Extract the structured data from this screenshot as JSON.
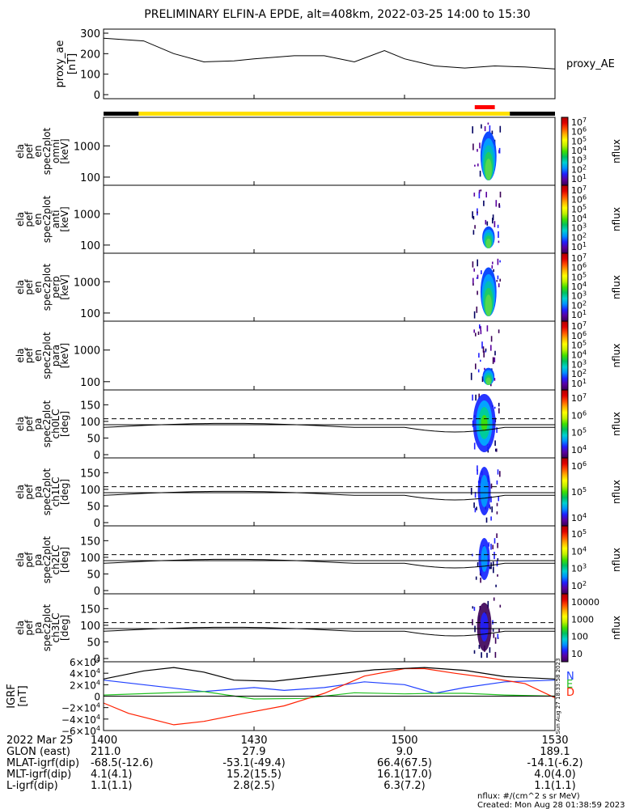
{
  "title": "PRELIMINARY ELFIN-A EPDE, alt=408km, 2022-03-25 14:00 to 15:30",
  "proxy_ae": {
    "ylabel": [
      "proxy_ae",
      "[nT]"
    ],
    "yticks": [
      "300",
      "200",
      "100",
      "0"
    ],
    "legend": "proxy_AE"
  },
  "energy_panels": [
    {
      "ylabel": [
        "ela",
        "pef",
        "en",
        "spec2plot",
        "omni",
        "[keV]"
      ],
      "yticks": [
        "1000",
        "100"
      ],
      "cbar_ticks": [
        "10^7",
        "10^6",
        "10^5",
        "10^4",
        "10^3",
        "10^2",
        "10^1"
      ],
      "cbar_label": "nflux"
    },
    {
      "ylabel": [
        "ela",
        "pef",
        "en",
        "spec2plot",
        "anti",
        "[keV]"
      ],
      "yticks": [
        "1000",
        "100"
      ],
      "cbar_ticks": [
        "10^7",
        "10^6",
        "10^5",
        "10^4",
        "10^3",
        "10^2",
        "10^1"
      ],
      "cbar_label": "nflux"
    },
    {
      "ylabel": [
        "ela",
        "pef",
        "en",
        "spec2plot",
        "perp",
        "[keV]"
      ],
      "yticks": [
        "1000",
        "100"
      ],
      "cbar_ticks": [
        "10^7",
        "10^6",
        "10^5",
        "10^4",
        "10^3",
        "10^2",
        "10^1"
      ],
      "cbar_label": "nflux"
    },
    {
      "ylabel": [
        "ela",
        "pef",
        "en",
        "spec2plot",
        "para",
        "[keV]"
      ],
      "yticks": [
        "1000",
        "100"
      ],
      "cbar_ticks": [
        "10^7",
        "10^6",
        "10^5",
        "10^4",
        "10^3",
        "10^2",
        "10^1"
      ],
      "cbar_label": "nflux"
    }
  ],
  "pa_panels": [
    {
      "ylabel": [
        "ela",
        "pef",
        "pa",
        "spec2plot",
        "ch0LC",
        "[deg]"
      ],
      "yticks": [
        "150",
        "100",
        "50",
        "0"
      ],
      "cbar_ticks": [
        "10^7",
        "10^6",
        "10^5",
        "10^4"
      ],
      "cbar_label": "nflux"
    },
    {
      "ylabel": [
        "ela",
        "pef",
        "pa",
        "spec2plot",
        "ch1LC",
        "[deg]"
      ],
      "yticks": [
        "150",
        "100",
        "50",
        "0"
      ],
      "cbar_ticks": [
        "10^6",
        "10^5",
        "10^4"
      ],
      "cbar_label": "nflux"
    },
    {
      "ylabel": [
        "ela",
        "pef",
        "pa",
        "spec2plot",
        "ch2LC",
        "[deg]"
      ],
      "yticks": [
        "150",
        "100",
        "50",
        "0"
      ],
      "cbar_ticks": [
        "10^5",
        "10^4",
        "10^3",
        "10^2"
      ],
      "cbar_label": "nflux"
    },
    {
      "ylabel": [
        "ela",
        "pef",
        "pa",
        "spec2plot",
        "ch3LC",
        "[deg]"
      ],
      "yticks": [
        "150",
        "100",
        "50",
        "0"
      ],
      "cbar_ticks": [
        "10000",
        "1000",
        "100",
        "10"
      ],
      "cbar_label": "nflux"
    }
  ],
  "igrf": {
    "ylabel": [
      "IGRF",
      "[nT]"
    ],
    "yticks": [
      "6×10^4",
      "4×10^4",
      "2×10^4",
      "0",
      "−2×10^4",
      "−4×10^4",
      "−6×10^4"
    ],
    "legend": [
      {
        "label": "N",
        "color": "#2040ff"
      },
      {
        "label": "E",
        "color": "#20c020"
      },
      {
        "label": "D",
        "color": "#ff2000"
      }
    ],
    "side_stamp": "Sun Aug 27 18:33:58 2023"
  },
  "ephemeris": {
    "rows": [
      {
        "label": "2022 Mar 25",
        "values": [
          "1400",
          "1430",
          "1500",
          "1530"
        ]
      },
      {
        "label": "GLON (east)",
        "values": [
          "211.0",
          "27.9",
          "9.0",
          "189.1"
        ]
      },
      {
        "label": "MLAT-igrf(dip)",
        "values": [
          "-68.5(-12.6)",
          "-53.1(-49.4)",
          "66.4(67.5)",
          "-14.1(-6.2)"
        ]
      },
      {
        "label": "MLT-igrf(dip)",
        "values": [
          "4.1(4.1)",
          "15.2(15.5)",
          "16.1(17.0)",
          "4.0(4.0)"
        ]
      },
      {
        "label": "L-igrf(dip)",
        "values": [
          "1.1(1.1)",
          "2.8(2.5)",
          "6.3(7.2)",
          "1.1(1.1)"
        ]
      }
    ]
  },
  "footer": {
    "units": "nflux: #/(cm^2 s sr MeV)",
    "created": "Created: Mon Aug 28 01:38:59 2023"
  },
  "chart_data": {
    "type": "line",
    "x_range": [
      "14:00",
      "15:30"
    ],
    "proxy_ae": {
      "x_minutes": [
        0,
        8,
        14,
        20,
        26,
        30,
        38,
        44,
        50,
        56,
        60,
        66,
        72,
        78,
        84,
        90
      ],
      "values": [
        275,
        262,
        200,
        160,
        165,
        175,
        190,
        190,
        160,
        215,
        175,
        140,
        130,
        140,
        135,
        125
      ],
      "ylim": [
        0,
        300
      ]
    },
    "orbit_bar": [
      {
        "from": 0,
        "to": 7,
        "color": "#000000"
      },
      {
        "from": 7,
        "to": 81,
        "color": "#ffe000"
      },
      {
        "from": 81,
        "to": 90,
        "color": "#000000"
      }
    ],
    "science_zone": {
      "from": 74,
      "to": 78,
      "color": "#ff0000"
    },
    "loss_cone_deg": 88,
    "anti_loss_cone_deg": 108,
    "igrf": {
      "ylim": [
        -60000,
        60000
      ],
      "series": [
        {
          "name": "N",
          "color": "#2040ff",
          "x": [
            0,
            10,
            20,
            30,
            36,
            44,
            52,
            60,
            66,
            72,
            80,
            90
          ],
          "y": [
            28000,
            18000,
            8000,
            15000,
            10000,
            15000,
            25000,
            20000,
            5000,
            15000,
            25000,
            28000
          ]
        },
        {
          "name": "E",
          "color": "#20c020",
          "x": [
            0,
            10,
            20,
            30,
            40,
            50,
            60,
            66,
            72,
            80,
            90
          ],
          "y": [
            2000,
            5000,
            8000,
            -5000,
            -4000,
            6000,
            4000,
            5000,
            5000,
            2000,
            0
          ]
        },
        {
          "name": "D",
          "color": "#ff2000",
          "x": [
            0,
            5,
            14,
            20,
            28,
            36,
            44,
            52,
            60,
            64,
            70,
            76,
            84,
            90
          ],
          "y": [
            -12000,
            -30000,
            -50000,
            -44000,
            -30000,
            -17000,
            5000,
            35000,
            48000,
            48000,
            40000,
            33000,
            22000,
            -3000
          ]
        },
        {
          "name": "total",
          "color": "#000000",
          "x": [
            0,
            8,
            14,
            20,
            26,
            34,
            44,
            54,
            64,
            72,
            80,
            90
          ],
          "y": [
            30000,
            44000,
            50000,
            42000,
            28000,
            26000,
            36000,
            46000,
            50000,
            45000,
            34000,
            30000
          ]
        }
      ]
    }
  }
}
